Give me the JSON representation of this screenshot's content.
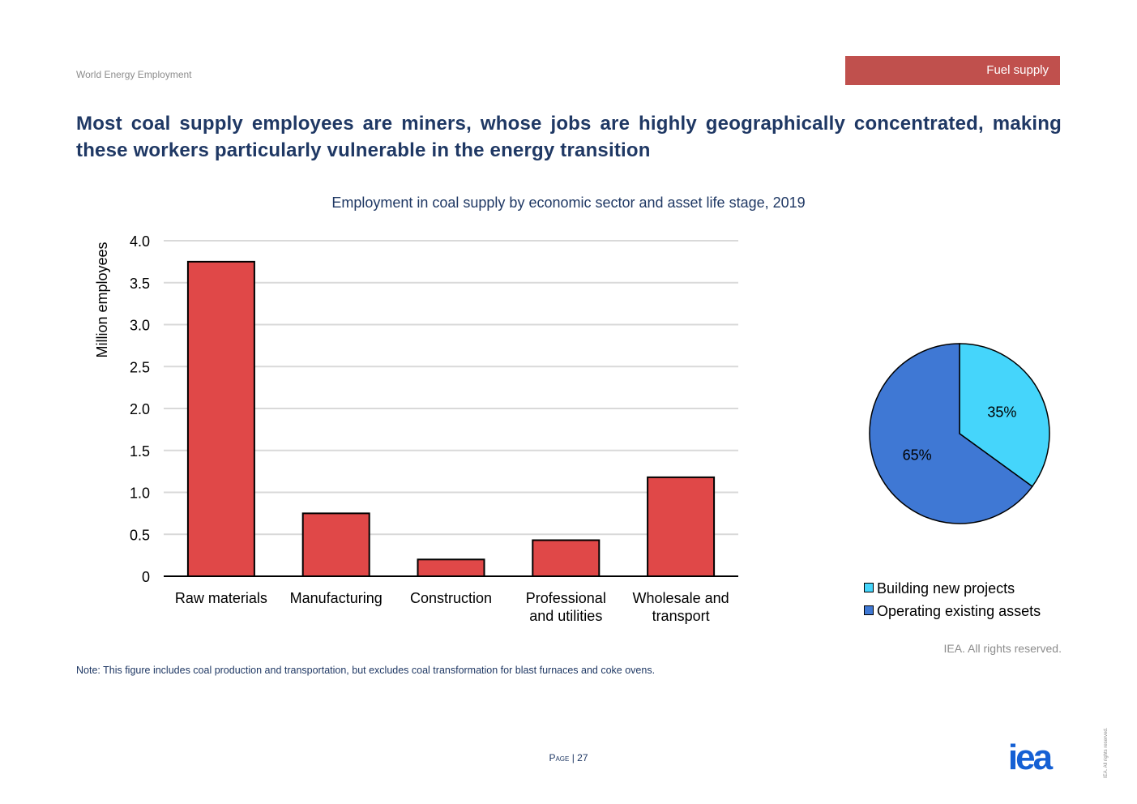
{
  "header": {
    "doc_title": "World Energy Employment",
    "section_tag": "Fuel supply",
    "headline": "Most coal supply employees are miners, whose jobs are highly geographically concentrated, making these workers particularly vulnerable in the energy transition"
  },
  "colors": {
    "bar": "#e04848",
    "pie_building": "#45d5fb",
    "pie_operating": "#3f78d4",
    "title_navy": "#1f3864",
    "tag_red": "#c0504d",
    "logo_blue": "#1560d4"
  },
  "chart_data": [
    {
      "type": "bar",
      "title": "Employment in coal supply by economic sector and asset life stage, 2019",
      "ylabel": "Million employees",
      "xlabel": "",
      "categories": [
        [
          "Raw materials"
        ],
        [
          "Manufacturing"
        ],
        [
          "Construction"
        ],
        [
          "Professional",
          "and utilities"
        ],
        [
          "Wholesale and",
          "transport"
        ]
      ],
      "values": [
        3.75,
        0.75,
        0.2,
        0.43,
        1.18
      ],
      "ylim": [
        0,
        4.0
      ],
      "yticks": [
        0,
        0.5,
        1.0,
        1.5,
        2.0,
        2.5,
        3.0,
        3.5,
        4.0
      ],
      "ytick_labels": [
        "0",
        "0.5",
        "1.0",
        "1.5",
        "2.0",
        "2.5",
        "3.0",
        "3.5",
        "4.0"
      ],
      "grid": true
    },
    {
      "type": "pie",
      "slices": [
        {
          "label": "Building new projects",
          "value": 35,
          "display": "35%"
        },
        {
          "label": "Operating existing assets",
          "value": 65,
          "display": "65%"
        }
      ],
      "legend_position": "bottom"
    }
  ],
  "footer": {
    "note": "Note: This figure includes coal production and transportation, but excludes coal transformation for blast furnaces and coke ovens.",
    "rights": "IEA. All rights reserved.",
    "page_label": "Page",
    "page_separator": " | ",
    "page_number": "27",
    "vertical_rights": "IEA. All rights reserved.",
    "logo_text": "iea"
  }
}
